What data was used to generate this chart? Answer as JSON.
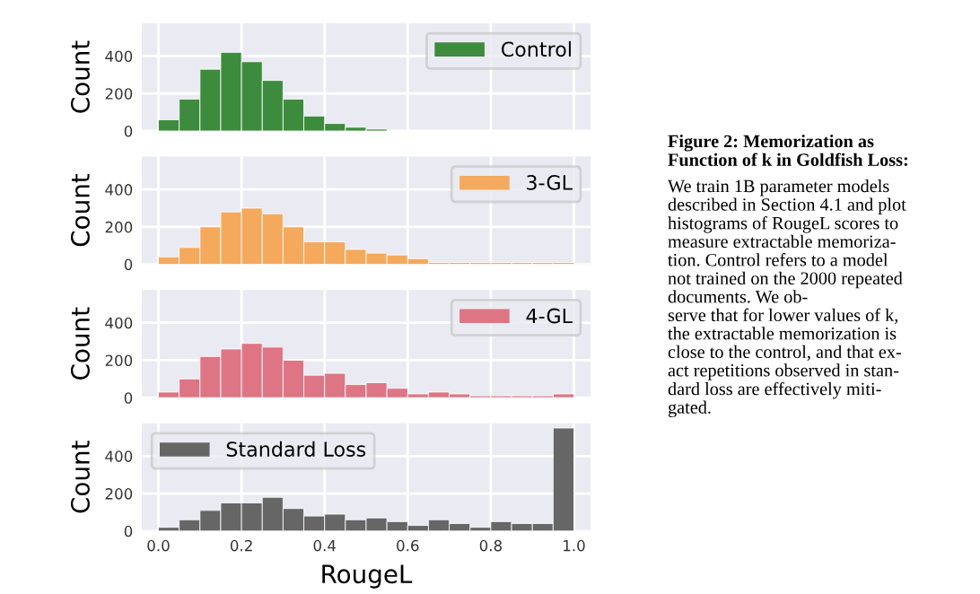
{
  "chart_data": [
    {
      "type": "histogram",
      "bins": [
        0.0,
        0.05,
        0.1,
        0.15,
        0.2,
        0.25,
        0.3,
        0.35,
        0.4,
        0.45,
        0.5,
        0.55,
        0.6,
        0.65,
        0.7,
        0.75,
        0.8,
        0.85,
        0.9,
        0.95,
        1.0
      ],
      "ylabel": "Count",
      "xlim": [
        -0.04,
        1.04
      ],
      "ylim": [
        0,
        575
      ],
      "yticks": [
        0,
        200,
        400
      ],
      "grid": true,
      "legend": "top right",
      "tick_labels": "y",
      "series": [
        {
          "name": "Control",
          "color": "#3d8b3d",
          "values": [
            60,
            170,
            330,
            420,
            370,
            270,
            170,
            80,
            40,
            20,
            10,
            null,
            null,
            null,
            null,
            null,
            null,
            null,
            null,
            null
          ]
        }
      ],
      "annotations": [
        "Figure 2: Memorization as\nFunction of k in Goldfish Loss:",
        "We train 1B parameter models\ndescribed in Section 4.1 and plot\nhistograms of RougeL scores to\nmeasure extractable memoriza-\ntion. Control refers to a model\nnot trained on the 2000 repeated\ndocuments. We ob-\nserve that for lower values of k,\nthe extractable memorization is\nclose to the control, and that ex-\nact repetitions observed in stan-\ndard loss are effectively miti-\ngated."
      ]
    },
    {
      "type": "histogram",
      "bins": [
        0.0,
        0.05,
        0.1,
        0.15,
        0.2,
        0.25,
        0.3,
        0.35,
        0.4,
        0.45,
        0.5,
        0.55,
        0.6,
        0.65,
        0.7,
        0.75,
        0.8,
        0.85,
        0.9,
        0.95,
        1.0
      ],
      "ylabel": "Count",
      "xlim": [
        -0.04,
        1.04
      ],
      "ylim": [
        0,
        575
      ],
      "yticks": [
        0,
        200,
        400
      ],
      "grid": true,
      "legend": "top right",
      "tick_labels": "y",
      "series": [
        {
          "name": "3-GL",
          "color": "#f5a95c",
          "values": [
            40,
            90,
            200,
            280,
            300,
            270,
            200,
            120,
            120,
            80,
            60,
            50,
            30,
            10,
            10,
            10,
            10,
            10,
            10,
            10
          ]
        }
      ]
    },
    {
      "type": "histogram",
      "bins": [
        0.0,
        0.05,
        0.1,
        0.15,
        0.2,
        0.25,
        0.3,
        0.35,
        0.4,
        0.45,
        0.5,
        0.55,
        0.6,
        0.65,
        0.7,
        0.75,
        0.8,
        0.85,
        0.9,
        0.95,
        1.0
      ],
      "ylabel": "Count",
      "xlim": [
        -0.04,
        1.04
      ],
      "ylim": [
        0,
        575
      ],
      "yticks": [
        0,
        200,
        400
      ],
      "grid": true,
      "legend": "top right",
      "tick_labels": "y",
      "series": [
        {
          "name": "4-GL",
          "color": "#de7585",
          "values": [
            30,
            100,
            220,
            260,
            290,
            270,
            200,
            120,
            130,
            70,
            80,
            50,
            20,
            30,
            20,
            10,
            10,
            10,
            10,
            20
          ]
        }
      ]
    },
    {
      "type": "histogram",
      "bins": [
        0.0,
        0.05,
        0.1,
        0.15,
        0.2,
        0.25,
        0.3,
        0.35,
        0.4,
        0.45,
        0.5,
        0.55,
        0.6,
        0.65,
        0.7,
        0.75,
        0.8,
        0.85,
        0.9,
        0.95,
        1.0
      ],
      "xlabel": "RougeL",
      "ylabel": "Count",
      "xlim": [
        -0.04,
        1.04
      ],
      "ylim": [
        0,
        575
      ],
      "xticks": [
        {
          "value": 0,
          "label": "0.0"
        },
        0.2,
        0.4,
        0.6,
        0.8,
        {
          "value": 1,
          "label": "1.0"
        }
      ],
      "yticks": [
        0,
        200,
        400
      ],
      "grid": true,
      "legend": "top left",
      "series": [
        {
          "name": "Standard Loss",
          "color": "#666666",
          "values": [
            20,
            60,
            110,
            150,
            150,
            180,
            120,
            80,
            90,
            60,
            70,
            50,
            30,
            60,
            40,
            20,
            50,
            40,
            40,
            550
          ]
        }
      ]
    }
  ]
}
